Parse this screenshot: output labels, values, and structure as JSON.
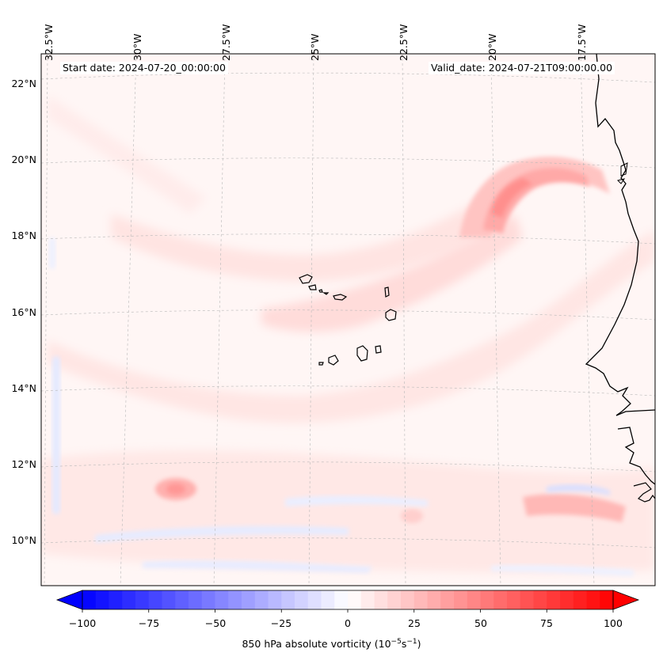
{
  "map": {
    "title_start": "Start date: 2024-07-20_00:00:00",
    "title_valid": "Valid_date: 2024-07-21T09:00:00.00",
    "lon_labels": [
      "32.5°W",
      "30°W",
      "27.5°W",
      "25°W",
      "22.5°W",
      "20°W",
      "17.5°W"
    ],
    "lat_labels": [
      "22°N",
      "20°N",
      "18°N",
      "16°N",
      "14°N",
      "12°N",
      "10°N"
    ],
    "field": "850 hPa absolute vorticity",
    "features": [
      "Cape Verde islands",
      "West African coastline",
      "Senegal",
      "Gambia"
    ]
  },
  "colorbar": {
    "label_main": "850 hPa absolute vorticity (10",
    "label_sup1": "−5",
    "label_mid": "s",
    "label_sup2": "−1",
    "label_end": ")",
    "ticks": [
      "−100",
      "−75",
      "−50",
      "−25",
      "0",
      "25",
      "50",
      "75",
      "100"
    ],
    "range": [
      -100,
      100
    ],
    "colors": {
      "min": "#0000ff",
      "mid": "#ffffff",
      "max": "#ff0000"
    }
  }
}
